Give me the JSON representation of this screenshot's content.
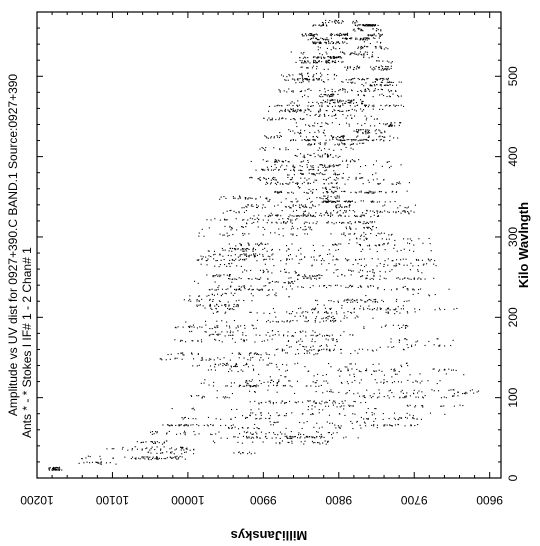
{
  "chart_data": {
    "type": "scatter",
    "title_lines": [
      "Amplitude vs UV dist for 0927+390.C BAND.1    Source:0927+390",
      "Ants * - *    Stokes I    IF# 1 - 2    Chan# 1"
    ],
    "xlabel": "Kilo Wavlngth",
    "ylabel": "MilliJanskys",
    "xlim": [
      0,
      580
    ],
    "ylim": [
      9585,
      10200
    ],
    "x_ticks": [
      0,
      100,
      200,
      300,
      400,
      500
    ],
    "y_ticks": [
      10200,
      10100,
      10000,
      9900,
      9800,
      9700,
      9600
    ],
    "grid": false,
    "legend": "none",
    "point_color": "#000000",
    "cloud_profile": [
      {
        "x": 10,
        "amp_min": 10150,
        "amp_max": 10195
      },
      {
        "x": 30,
        "amp_min": 9900,
        "amp_max": 10120
      },
      {
        "x": 60,
        "amp_min": 9700,
        "amp_max": 10060
      },
      {
        "x": 100,
        "amp_min": 9610,
        "amp_max": 10000
      },
      {
        "x": 150,
        "amp_min": 9640,
        "amp_max": 10040
      },
      {
        "x": 200,
        "amp_min": 9640,
        "amp_max": 10020
      },
      {
        "x": 250,
        "amp_min": 9660,
        "amp_max": 10000
      },
      {
        "x": 300,
        "amp_min": 9680,
        "amp_max": 9990
      },
      {
        "x": 350,
        "amp_min": 9700,
        "amp_max": 9960
      },
      {
        "x": 400,
        "amp_min": 9720,
        "amp_max": 9920
      },
      {
        "x": 450,
        "amp_min": 9700,
        "amp_max": 9900
      },
      {
        "x": 500,
        "amp_min": 9720,
        "amp_max": 9880
      },
      {
        "x": 550,
        "amp_min": 9740,
        "amp_max": 9850
      },
      {
        "x": 570,
        "amp_min": 9750,
        "amp_max": 9830
      }
    ]
  }
}
